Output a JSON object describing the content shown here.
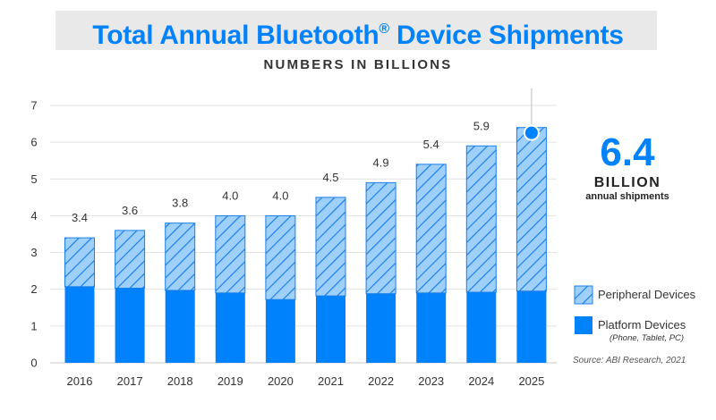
{
  "title": "Total Annual Bluetooth",
  "title_mark": "®",
  "title_suffix": " Device Shipments",
  "subtitle": "NUMBERS IN BILLIONS",
  "callout": {
    "value": "6.4",
    "unit": "BILLION",
    "caption": "annual shipments"
  },
  "legend": {
    "peripheral": "Peripheral Devices",
    "platform": "Platform Devices",
    "platform_note": "(Phone, Tablet, PC)"
  },
  "source": "Source: ABI Research, 2021",
  "colors": {
    "accent": "#0082fc",
    "hatch_bg": "#9fd0fb",
    "hatch_line": "#1a7fe8"
  },
  "chart_data": {
    "type": "bar",
    "stacked": true,
    "title": "Total Annual Bluetooth® Device Shipments",
    "ylabel": "NUMBERS IN BILLIONS",
    "ylim": [
      0,
      7
    ],
    "yticks": [
      0,
      1,
      2,
      3,
      4,
      5,
      6,
      7
    ],
    "categories": [
      "2016",
      "2017",
      "2018",
      "2019",
      "2020",
      "2021",
      "2022",
      "2023",
      "2024",
      "2025"
    ],
    "series": [
      {
        "name": "Platform Devices",
        "values": [
          2.07,
          2.03,
          1.97,
          1.9,
          1.72,
          1.82,
          1.88,
          1.9,
          1.92,
          1.95
        ]
      },
      {
        "name": "Peripheral Devices",
        "values": [
          1.33,
          1.57,
          1.83,
          2.1,
          2.28,
          2.68,
          3.02,
          3.5,
          3.98,
          4.45
        ]
      }
    ],
    "totals": [
      3.4,
      3.6,
      3.8,
      4.0,
      4.0,
      4.5,
      4.9,
      5.4,
      5.9,
      6.4
    ],
    "total_labels": [
      "3.4",
      "3.6",
      "3.8",
      "4.0",
      "4.0",
      "4.5",
      "4.9",
      "5.4",
      "5.9",
      ""
    ],
    "highlight_category": "2025"
  }
}
